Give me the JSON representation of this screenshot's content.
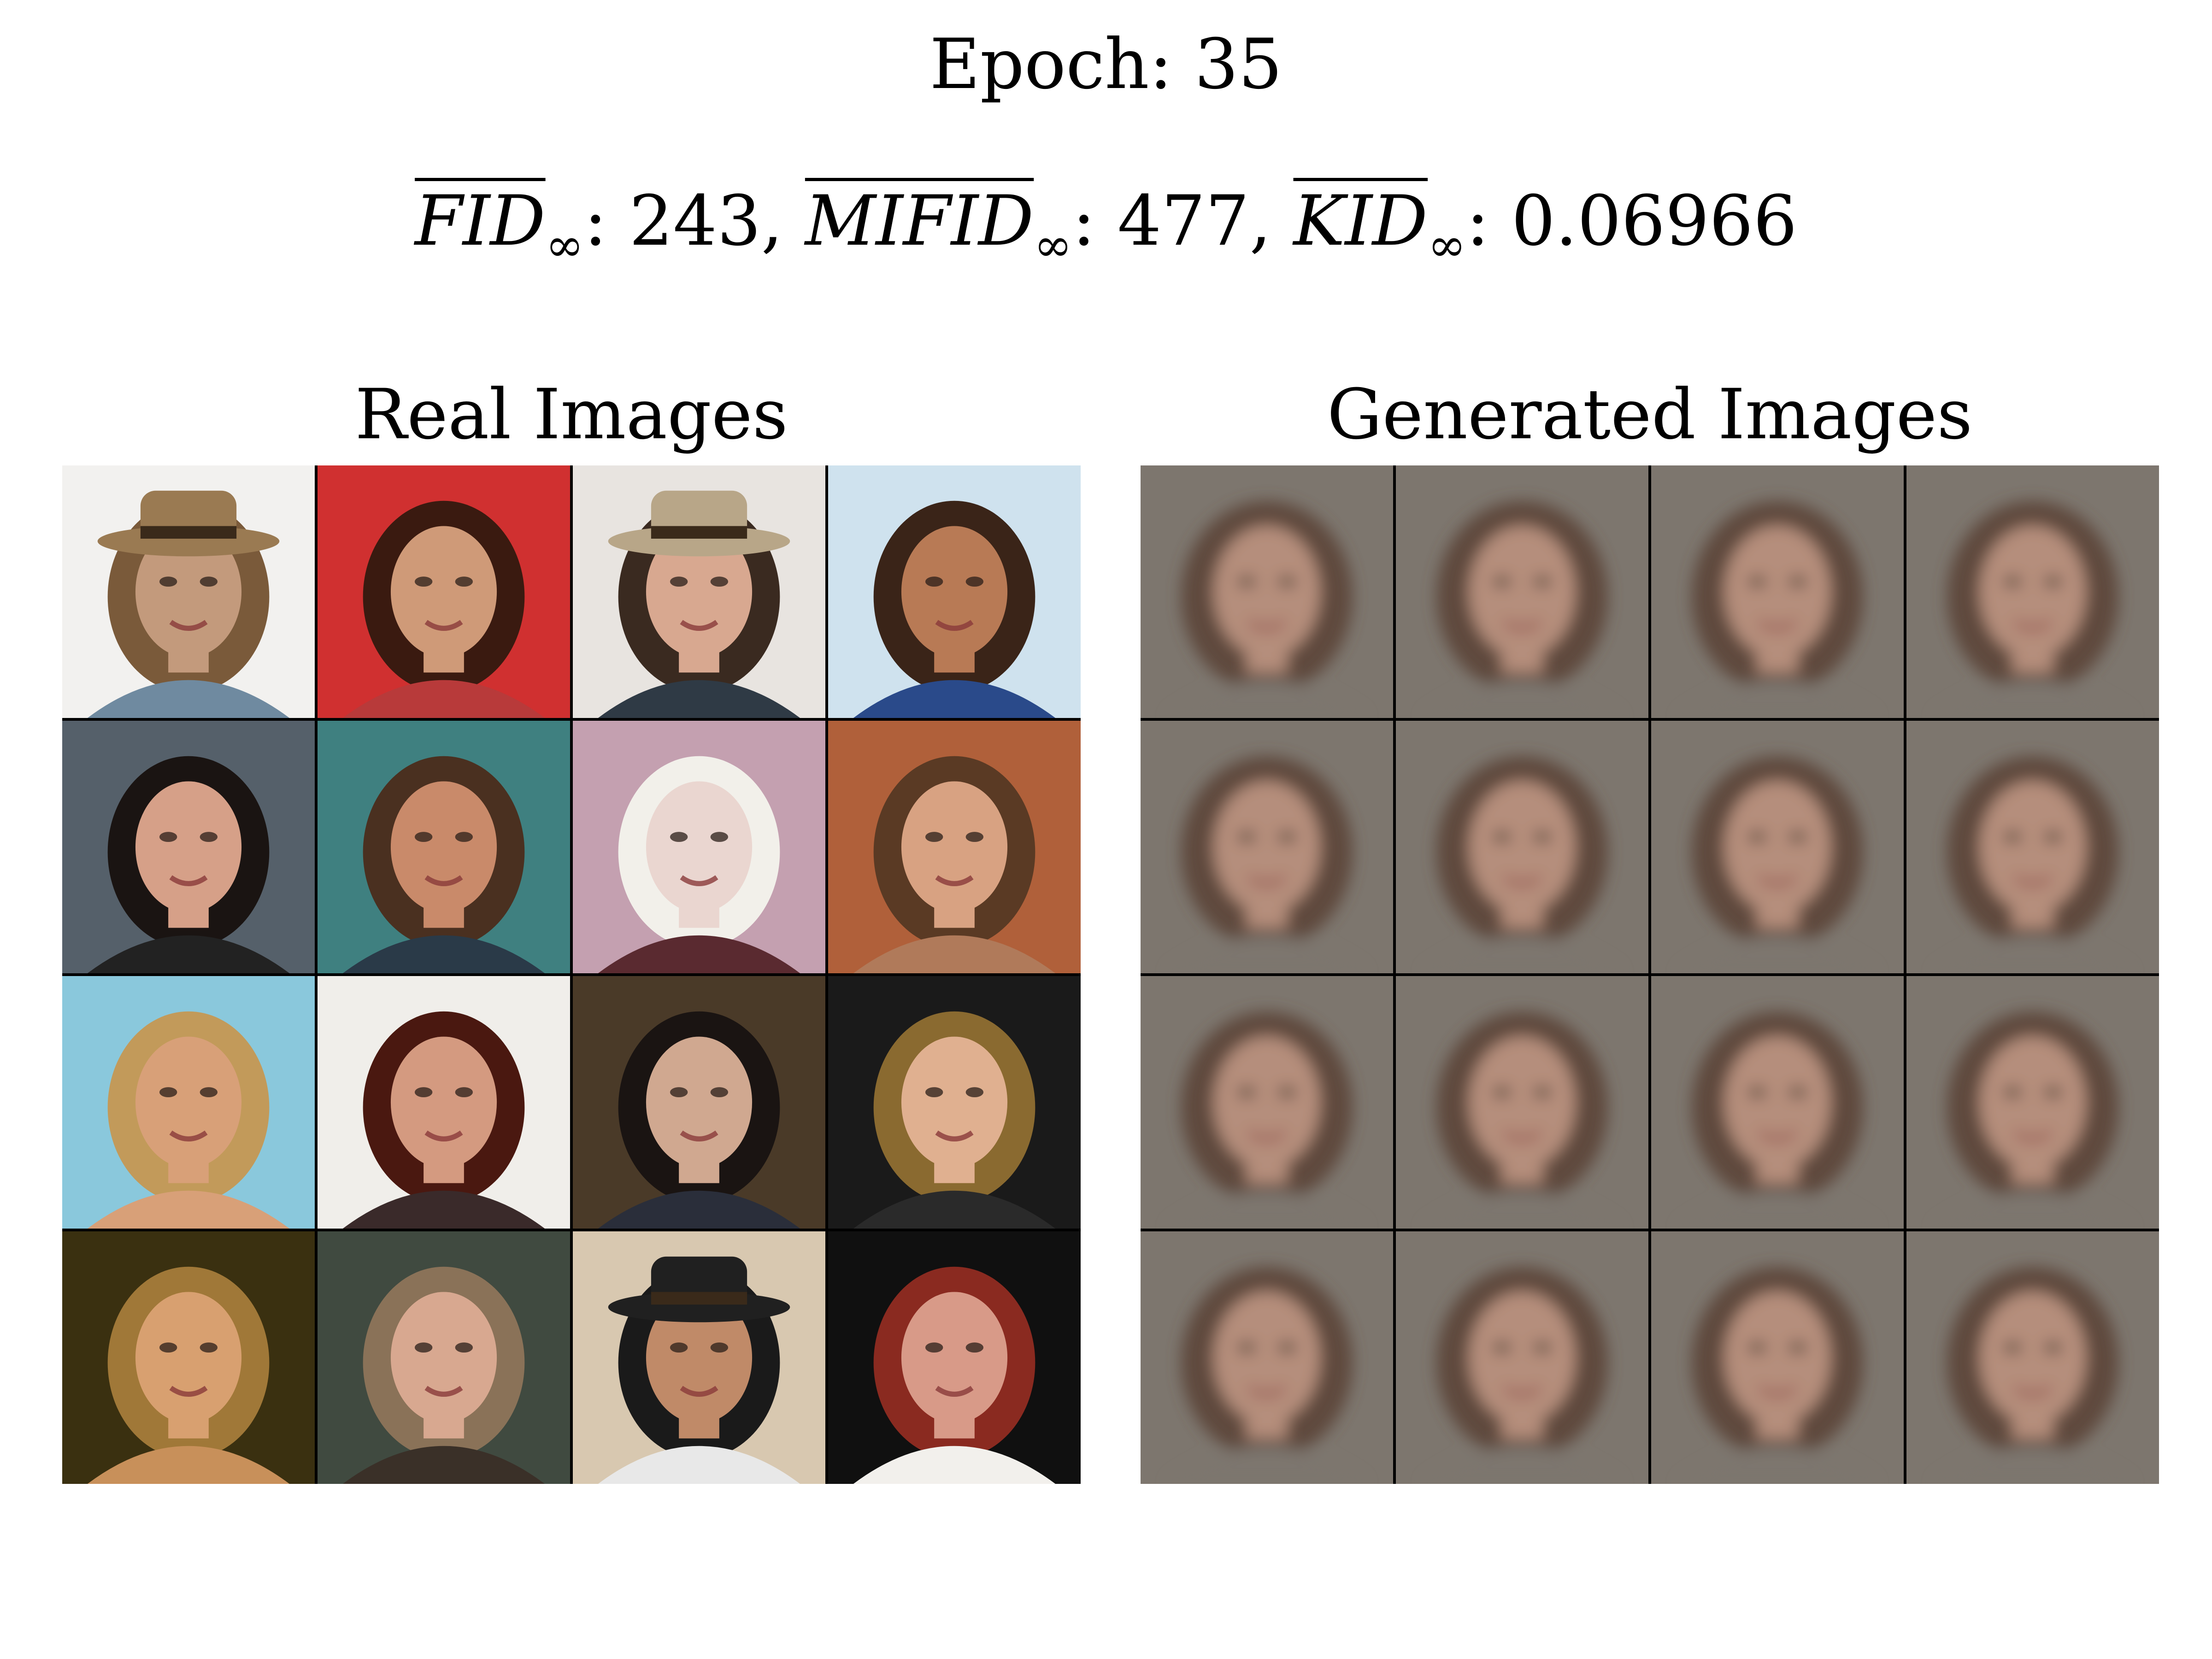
{
  "header": {
    "epoch_text": "Epoch: 35"
  },
  "metrics": [
    {
      "name": "FID",
      "subscript": "∞",
      "value": "243",
      "sep": ", "
    },
    {
      "name": "MIFID",
      "subscript": "∞",
      "value": "477",
      "sep": ", "
    },
    {
      "name": "KID",
      "subscript": "∞",
      "value": "0.06966",
      "sep": ""
    }
  ],
  "real_panel": {
    "title": "Real Images",
    "cells": [
      {
        "bg": "#f2f1ef",
        "skin": "#c39a7c",
        "hair": "#7a5a3a",
        "shirt": "#6f8aa0",
        "hat": "#9a7a52"
      },
      {
        "bg": "#d03030",
        "skin": "#cf9a78",
        "hair": "#3a1a10",
        "shirt": "#b83a3a",
        "hat": ""
      },
      {
        "bg": "#e8e4e0",
        "skin": "#d8a890",
        "hair": "#3a2a20",
        "shirt": "#2f3a45",
        "hat": "#b8a688"
      },
      {
        "bg": "#cfe2ee",
        "skin": "#b87a55",
        "hair": "#3a2418",
        "shirt": "#2a4a8a",
        "hat": ""
      },
      {
        "bg": "#55606a",
        "skin": "#d6a088",
        "hair": "#1a1412",
        "shirt": "#222222",
        "hat": ""
      },
      {
        "bg": "#3f8080",
        "skin": "#c98a6a",
        "hair": "#4a3020",
        "shirt": "#2a3a48",
        "hat": ""
      },
      {
        "bg": "#c4a0b0",
        "skin": "#ead6d0",
        "hair": "#f2f0ea",
        "shirt": "#5a2a30",
        "hat": ""
      },
      {
        "bg": "#b0603a",
        "skin": "#d8a282",
        "hair": "#5a3a24",
        "shirt": "#b07a5a",
        "hat": ""
      },
      {
        "bg": "#8ac8dc",
        "skin": "#d8a078",
        "hair": "#c29a5a",
        "shirt": "#d8a078",
        "hat": ""
      },
      {
        "bg": "#f0eeea",
        "skin": "#d49a80",
        "hair": "#4a1810",
        "shirt": "#3a2a2a",
        "hat": ""
      },
      {
        "bg": "#4a3a28",
        "skin": "#d0a890",
        "hair": "#1a1412",
        "shirt": "#2a2e3a",
        "hat": ""
      },
      {
        "bg": "#1a1a1a",
        "skin": "#e0b090",
        "hair": "#8a6a30",
        "shirt": "#2a2a2a",
        "hat": ""
      },
      {
        "bg": "#3a3010",
        "skin": "#d8a070",
        "hair": "#a07838",
        "shirt": "#c8905a",
        "hat": ""
      },
      {
        "bg": "#404a40",
        "skin": "#d8a890",
        "hair": "#8a7258",
        "shirt": "#3a3028",
        "hat": ""
      },
      {
        "bg": "#d8c8b0",
        "skin": "#c08a68",
        "hair": "#1a1a1a",
        "shirt": "#e8e8e8",
        "hat": "#202020"
      },
      {
        "bg": "#101010",
        "skin": "#d89a88",
        "hair": "#8a2a20",
        "shirt": "#f2f0ec",
        "hat": ""
      }
    ]
  },
  "generated_panel": {
    "title": "Generated Images",
    "bg_color": "#7d766e",
    "hair_color": "#5e4a3e",
    "skin_color": "#b58e7c",
    "cell_count": 16
  }
}
